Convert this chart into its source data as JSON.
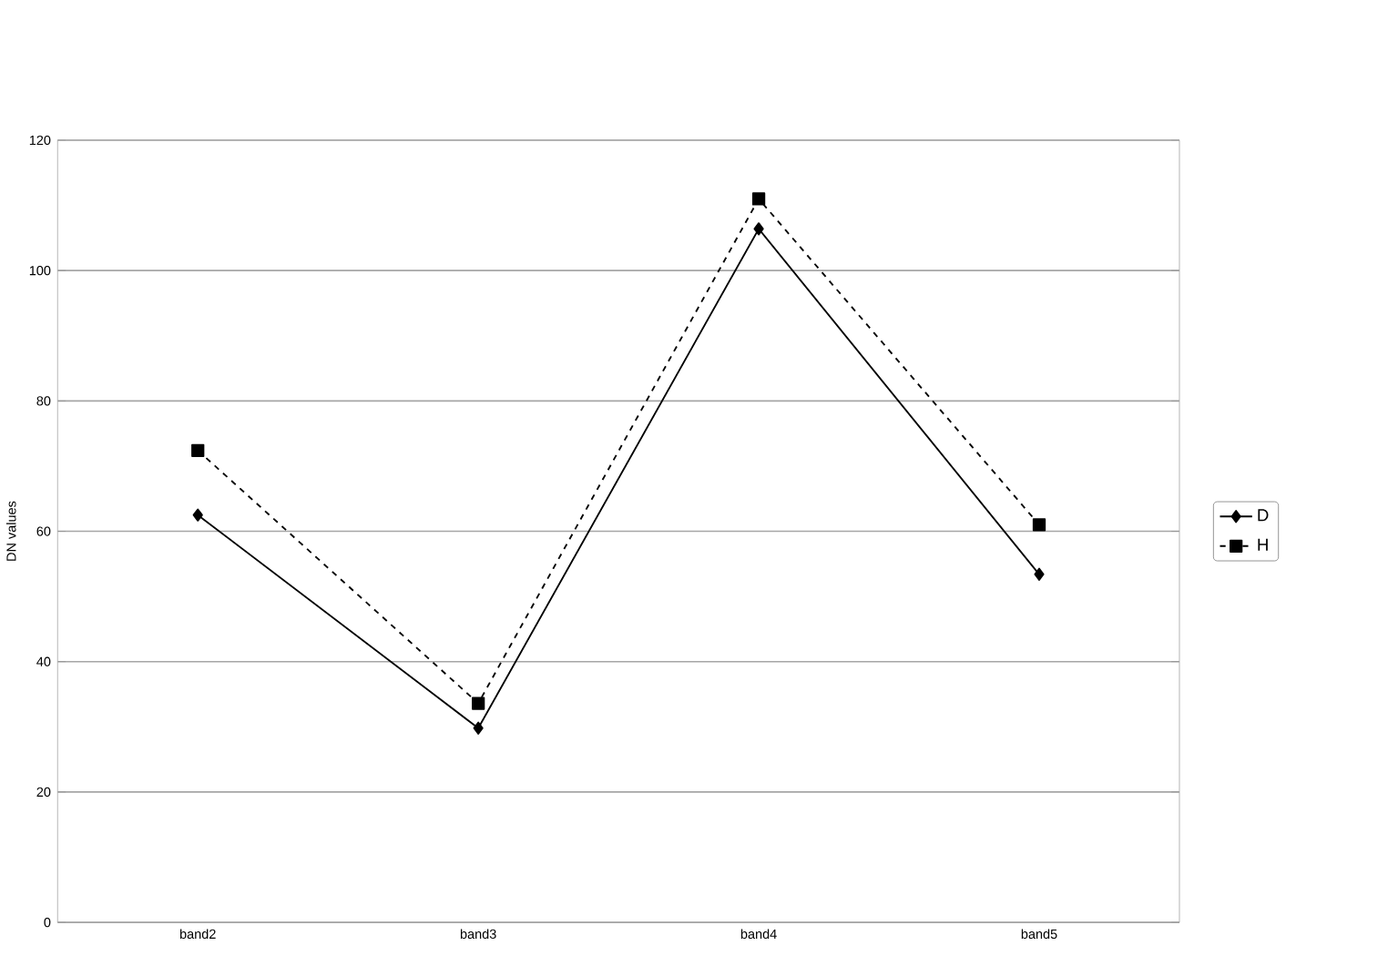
{
  "chart_data": {
    "type": "line",
    "ylabel": "DN values",
    "categories": [
      "band2",
      "band3",
      "band4",
      "band5"
    ],
    "ylim": [
      0,
      120
    ],
    "yticks": [
      0,
      20,
      40,
      60,
      80,
      100,
      120
    ],
    "grid": "y",
    "legend": "right",
    "series": [
      {
        "name": "D",
        "color": "#000000",
        "marker": "diamond",
        "line_style": "solid",
        "values": [
          62.5,
          29.8,
          106.4,
          53.4
        ]
      },
      {
        "name": "H",
        "color": "#000000",
        "marker": "square",
        "line_style": "dashed",
        "values": [
          72.4,
          33.6,
          111,
          61
        ]
      }
    ]
  }
}
